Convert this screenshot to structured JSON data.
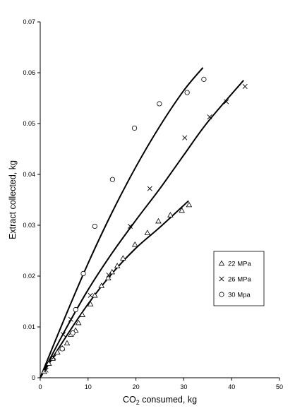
{
  "chart_data": {
    "type": "scatter",
    "xlabel": {
      "main": "CO",
      "sub": "2",
      "rest": " consumed, kg"
    },
    "ylabel": "Extract collected, kg",
    "xlim": [
      0,
      50
    ],
    "ylim": [
      0,
      0.07
    ],
    "xticks": [
      0,
      10,
      20,
      30,
      40,
      50
    ],
    "yticks": [
      0,
      0.01,
      0.02,
      0.03,
      0.04,
      0.05,
      0.06,
      0.07
    ],
    "xtick_labels": [
      "0",
      "10",
      "20",
      "30",
      "40",
      "50"
    ],
    "ytick_labels": [
      "0",
      "0.01",
      "0.02",
      "0.03",
      "0.04",
      "0.05",
      "0.06",
      "0.07"
    ],
    "grid": false,
    "legend_position": "right-middle",
    "series": [
      {
        "name": "22 MPa",
        "marker": "triangle",
        "points": [
          [
            0.8,
            0.0012
          ],
          [
            1.8,
            0.0028
          ],
          [
            2.6,
            0.0038
          ],
          [
            3.6,
            0.005
          ],
          [
            4.6,
            0.0058
          ],
          [
            5.6,
            0.0068
          ],
          [
            6.4,
            0.0085
          ],
          [
            7.4,
            0.0093
          ],
          [
            8.0,
            0.0108
          ],
          [
            8.8,
            0.0124
          ],
          [
            10.5,
            0.0145
          ],
          [
            11.4,
            0.0162
          ],
          [
            12.8,
            0.0181
          ],
          [
            14.2,
            0.0196
          ],
          [
            15.0,
            0.0208
          ],
          [
            16.1,
            0.022
          ],
          [
            17.3,
            0.0235
          ],
          [
            19.8,
            0.0262
          ],
          [
            22.4,
            0.0285
          ],
          [
            24.7,
            0.0308
          ],
          [
            27.2,
            0.032
          ],
          [
            29.6,
            0.0329
          ],
          [
            31.1,
            0.034
          ]
        ],
        "curve": [
          [
            0,
            0
          ],
          [
            5,
            0.0075
          ],
          [
            10,
            0.0145
          ],
          [
            15,
            0.0205
          ],
          [
            20,
            0.0255
          ],
          [
            25,
            0.0296
          ],
          [
            31,
            0.0348
          ]
        ]
      },
      {
        "name": "26 MPa",
        "marker": "x",
        "points": [
          [
            1.2,
            0.0015
          ],
          [
            2.8,
            0.004
          ],
          [
            4.8,
            0.0085
          ],
          [
            6.4,
            0.0115
          ],
          [
            10.5,
            0.0162
          ],
          [
            14.3,
            0.0202
          ],
          [
            18.8,
            0.0298
          ],
          [
            22.9,
            0.0372
          ],
          [
            30.2,
            0.0472
          ],
          [
            35.4,
            0.0513
          ],
          [
            38.9,
            0.0543
          ],
          [
            42.8,
            0.0573
          ]
        ],
        "curve": [
          [
            0,
            0
          ],
          [
            5,
            0.009
          ],
          [
            10,
            0.0173
          ],
          [
            15,
            0.0245
          ],
          [
            20,
            0.031
          ],
          [
            25,
            0.0372
          ],
          [
            30,
            0.0438
          ],
          [
            35,
            0.0503
          ],
          [
            42.5,
            0.0585
          ]
        ]
      },
      {
        "name": "30 Mpa",
        "marker": "circle",
        "points": [
          [
            4.6,
            0.0057
          ],
          [
            6.8,
            0.0088
          ],
          [
            7.4,
            0.0134
          ],
          [
            9.0,
            0.0205
          ],
          [
            11.4,
            0.0298
          ],
          [
            15.1,
            0.039
          ],
          [
            19.7,
            0.0491
          ],
          [
            24.9,
            0.0539
          ],
          [
            30.7,
            0.0561
          ],
          [
            34.2,
            0.0587
          ]
        ],
        "curve": [
          [
            0,
            0
          ],
          [
            5,
            0.0115
          ],
          [
            10,
            0.0225
          ],
          [
            15,
            0.0325
          ],
          [
            20,
            0.0415
          ],
          [
            25,
            0.0495
          ],
          [
            30,
            0.0565
          ],
          [
            34,
            0.061
          ]
        ]
      }
    ]
  }
}
